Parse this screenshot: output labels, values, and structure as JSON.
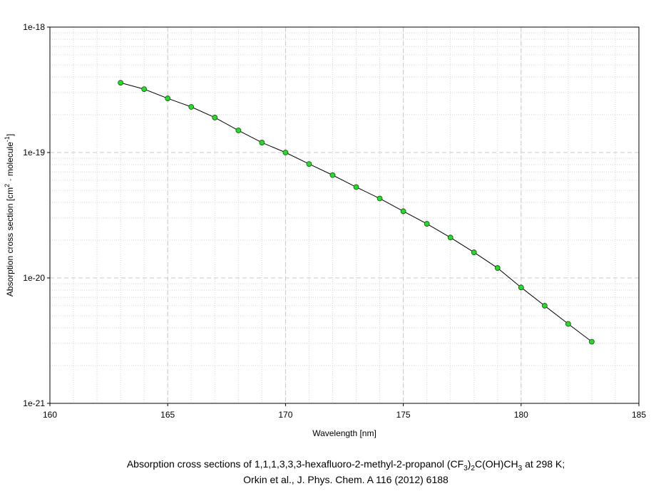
{
  "chart_data": {
    "type": "line",
    "xlabel": "Wavelength [nm]",
    "ylabel": [
      "Absorption cross section [cm",
      "2",
      " · molecule",
      "-1",
      "]"
    ],
    "caption": [
      [
        "Absorption cross sections of 1,1,1,3,3,3-hexafluoro-2-methyl-2-propanol (CF",
        "3",
        ")",
        "2",
        "C(OH)CH",
        "3",
        " at 298 K;"
      ],
      [
        "Orkin et al., J. Phys. Chem. A 116 (2012) 6188"
      ]
    ],
    "x": [
      163,
      164,
      165,
      166,
      167,
      168,
      169,
      170,
      171,
      172,
      173,
      174,
      175,
      176,
      177,
      178,
      179,
      180,
      181,
      182,
      183
    ],
    "series": [
      {
        "color": "#22dd22",
        "values": [
          3.6e-19,
          3.2e-19,
          2.7e-19,
          2.31e-19,
          1.9e-19,
          1.5e-19,
          1.2e-19,
          1e-19,
          8.1e-20,
          6.6e-20,
          5.3e-20,
          4.3e-20,
          3.4e-20,
          2.7e-20,
          2.1e-20,
          1.6e-20,
          1.2e-20,
          8.4e-21,
          6e-21,
          4.3e-21,
          3.1e-21
        ]
      }
    ],
    "xlim": [
      160,
      185
    ],
    "xticks": [
      160,
      165,
      170,
      175,
      180,
      185
    ],
    "ylim": [
      1e-21,
      1e-18
    ],
    "yticks": [
      {
        "value": 1e-21,
        "label": "1e-21"
      },
      {
        "value": 1e-20,
        "label": "1e-20"
      },
      {
        "value": 1e-19,
        "label": "1e-19"
      },
      {
        "value": 1e-18,
        "label": "1e-18"
      }
    ],
    "yscale": "log",
    "grid": true
  }
}
